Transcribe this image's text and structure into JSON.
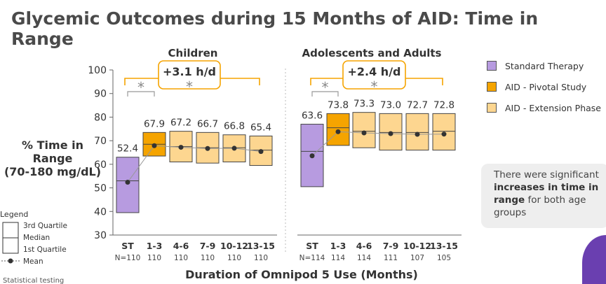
{
  "title": "Glycemic Outcomes during 15 Months of AID: Time in Range",
  "y_axis_label": [
    "% Time in",
    "Range",
    "(70-180 mg/dL)"
  ],
  "x_axis_label": "Duration of Omnipod 5 Use (Months)",
  "legend_box": {
    "title": "Legend",
    "items": [
      "3rd Quartile",
      "Median",
      "1st Quartile",
      "Mean"
    ]
  },
  "statistical_note": "Statistical testing",
  "series_legend": [
    {
      "name": "Standard Therapy",
      "color": "#b79be0"
    },
    {
      "name": "AID - Pivotal Study",
      "color": "#f5a400"
    },
    {
      "name": "AID - Extension Phase",
      "color": "#fdd690"
    }
  ],
  "callout": {
    "pre": "There were significant ",
    "bold": "increases in time in range",
    "post": " for both age groups"
  },
  "chart_data": [
    {
      "type": "box",
      "title": "Children",
      "ylim": [
        30,
        100
      ],
      "yticks": [
        30,
        40,
        50,
        60,
        70,
        80,
        90,
        100
      ],
      "annotation": "+3.1 h/d",
      "significance_marks": [
        "*",
        "*"
      ],
      "categories": [
        "ST",
        "1-3",
        "4-6",
        "7-9",
        "10-12",
        "13-15"
      ],
      "n": [
        "N=110",
        "110",
        "110",
        "110",
        "110",
        "110"
      ],
      "series_type": [
        "Standard Therapy",
        "AID - Pivotal Study",
        "AID - Extension Phase",
        "AID - Extension Phase",
        "AID - Extension Phase",
        "AID - Extension Phase"
      ],
      "mean_labels": [
        "52.4",
        "67.9",
        "67.2",
        "66.7",
        "66.8",
        "65.4"
      ],
      "mean": [
        52.4,
        67.9,
        67.2,
        66.7,
        66.8,
        65.4
      ],
      "q1": [
        39.5,
        63.5,
        61.0,
        60.5,
        61.0,
        59.5
      ],
      "median": [
        53.0,
        68.5,
        67.5,
        67.0,
        67.0,
        66.0
      ],
      "q3": [
        63.0,
        73.5,
        74.0,
        73.5,
        72.5,
        72.0
      ]
    },
    {
      "type": "box",
      "title": "Adolescents and Adults",
      "ylim": [
        30,
        100
      ],
      "annotation": "+2.4 h/d",
      "significance_marks": [
        "*",
        "*"
      ],
      "categories": [
        "ST",
        "1-3",
        "4-6",
        "7-9",
        "10-12",
        "13-15"
      ],
      "n": [
        "N=114",
        "114",
        "114",
        "111",
        "107",
        "105"
      ],
      "series_type": [
        "Standard Therapy",
        "AID - Pivotal Study",
        "AID - Extension Phase",
        "AID - Extension Phase",
        "AID - Extension Phase",
        "AID - Extension Phase"
      ],
      "mean_labels": [
        "63.6",
        "73.8",
        "73.3",
        "73.0",
        "72.7",
        "72.8"
      ],
      "mean": [
        63.6,
        73.8,
        73.3,
        73.0,
        72.7,
        72.8
      ],
      "q1": [
        50.5,
        68.0,
        67.0,
        66.0,
        66.0,
        66.0
      ],
      "median": [
        65.5,
        75.5,
        74.0,
        73.5,
        73.5,
        74.0
      ],
      "q3": [
        77.0,
        81.5,
        82.0,
        81.5,
        81.5,
        81.5
      ]
    }
  ]
}
